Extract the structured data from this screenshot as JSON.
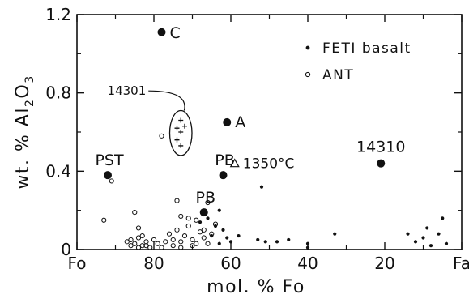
{
  "chart_data": {
    "type": "scatter",
    "xlabel": "mol. % Fo",
    "ylabel": "wt. % Al₂O₃",
    "ylabel_parts": {
      "prefix": "wt. % Al",
      "sub1": "2",
      "mid": "O",
      "sub2": "3"
    },
    "xlim": [
      100,
      0
    ],
    "ylim": [
      0,
      1.2
    ],
    "x_ticks": [
      {
        "value": 100,
        "label": "Fo"
      },
      {
        "value": 80,
        "label": "80"
      },
      {
        "value": 60,
        "label": "60"
      },
      {
        "value": 40,
        "label": "40"
      },
      {
        "value": 20,
        "label": "20"
      },
      {
        "value": 0,
        "label": "Fa"
      }
    ],
    "y_ticks": [
      {
        "value": 0,
        "label": "0"
      },
      {
        "value": 0.4,
        "label": "0.4"
      },
      {
        "value": 0.8,
        "label": "0.8"
      },
      {
        "value": 1.2,
        "label": "1.2"
      }
    ],
    "y_minor_ticks": [
      0.2,
      0.6,
      1.0
    ],
    "x_minor_ticks": [
      90,
      70,
      50,
      30,
      10
    ],
    "legend": {
      "position": "top-right",
      "entries": [
        {
          "label": "FETI basalt",
          "marker": "small-filled-dot"
        },
        {
          "label": "ANT",
          "marker": "small-open-circle"
        }
      ]
    },
    "series": [
      {
        "name": "FETI basalt",
        "marker": "small-filled-dot",
        "points": [
          [
            68,
            0.14
          ],
          [
            66,
            0.16
          ],
          [
            64,
            0.12
          ],
          [
            62,
            0.1
          ],
          [
            63,
            0.2
          ],
          [
            65,
            0.07
          ],
          [
            61,
            0.06
          ],
          [
            60,
            0.04
          ],
          [
            63,
            0.03
          ],
          [
            58,
            0.07
          ],
          [
            52,
            0.32
          ],
          [
            53,
            0.05
          ],
          [
            51,
            0.04
          ],
          [
            48,
            0.04
          ],
          [
            45,
            0.05
          ],
          [
            40,
            0.03
          ],
          [
            40,
            0.01
          ],
          [
            33,
            0.08
          ],
          [
            14,
            0.08
          ],
          [
            12,
            0.04
          ],
          [
            10,
            0.06
          ],
          [
            9,
            0.11
          ],
          [
            8,
            0.02
          ],
          [
            6,
            0.08
          ],
          [
            5,
            0.16
          ],
          [
            4,
            0.03
          ]
        ]
      },
      {
        "name": "ANT",
        "marker": "small-open-circle",
        "points": [
          [
            93,
            0.15
          ],
          [
            91,
            0.35
          ],
          [
            85,
            0.19
          ],
          [
            84,
            0.11
          ],
          [
            78,
            0.58
          ],
          [
            74,
            0.25
          ],
          [
            73,
            0.17
          ],
          [
            71,
            0.16
          ],
          [
            69,
            0.15
          ],
          [
            67,
            0.1
          ],
          [
            66,
            0.24
          ],
          [
            64,
            0.13
          ],
          [
            86,
            0.05
          ],
          [
            85,
            0.03
          ],
          [
            84,
            0.06
          ],
          [
            83,
            0.02
          ],
          [
            82,
            0.04
          ],
          [
            81,
            0.01
          ],
          [
            80,
            0.05
          ],
          [
            79,
            0.03
          ],
          [
            77,
            0.04
          ],
          [
            76,
            0.08
          ],
          [
            75,
            0.05
          ],
          [
            74,
            0.1
          ],
          [
            73,
            0.04
          ],
          [
            72,
            0.07
          ],
          [
            71,
            0.12
          ],
          [
            70,
            0.05
          ],
          [
            69,
            0.03
          ],
          [
            68,
            0.09
          ],
          [
            67,
            0.06
          ],
          [
            66,
            0.03
          ],
          [
            65,
            0.08
          ],
          [
            86,
            0.02
          ],
          [
            84,
            0.01
          ],
          [
            82,
            0.02
          ],
          [
            78,
            0.01
          ],
          [
            73,
            0.01
          ],
          [
            70,
            0.02
          ],
          [
            87,
            0.04
          ],
          [
            83,
            0.07
          ],
          [
            75,
            0.02
          ]
        ]
      },
      {
        "name": "14301",
        "marker": "plus",
        "points": [
          [
            73,
            0.66
          ],
          [
            74,
            0.62
          ],
          [
            73,
            0.6
          ],
          [
            74,
            0.56
          ],
          [
            73,
            0.53
          ],
          [
            72,
            0.63
          ]
        ]
      },
      {
        "name": "labeled",
        "marker": "large-filled-dot",
        "points": [
          {
            "x": 78,
            "y": 1.11,
            "label": "C"
          },
          {
            "x": 61,
            "y": 0.65,
            "label": "A"
          },
          {
            "x": 92,
            "y": 0.38,
            "label": "PST"
          },
          {
            "x": 62,
            "y": 0.38,
            "label": "PB"
          },
          {
            "x": 67,
            "y": 0.19,
            "label": "PB"
          },
          {
            "x": 21,
            "y": 0.44,
            "label": "14310"
          }
        ]
      },
      {
        "name": "1350°C",
        "marker": "open-triangle",
        "points": [
          {
            "x": 59,
            "y": 0.44,
            "label": "1350°C"
          }
        ]
      }
    ],
    "annotations": [
      {
        "text": "14301",
        "target_series": "14301"
      }
    ]
  }
}
